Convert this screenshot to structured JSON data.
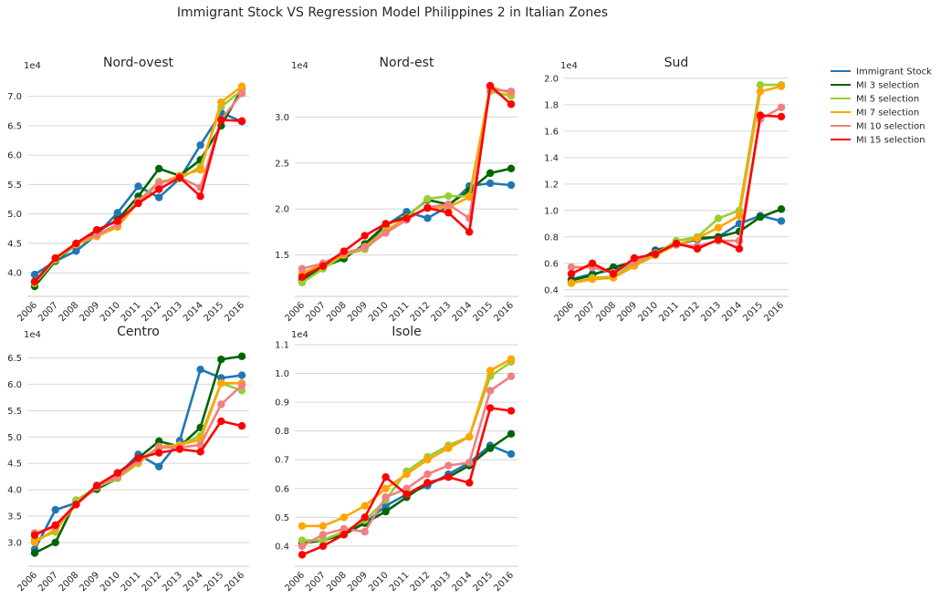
{
  "figure": {
    "title": "Immigrant Stock VS Regression Model Philippines 2 in Italian Zones"
  },
  "legend": {
    "placement": "right",
    "entries": [
      {
        "label": "Immigrant Stock",
        "color": "#1f77b4"
      },
      {
        "label": "MI 3 selection",
        "color": "#006400"
      },
      {
        "label": "MI 5 selection",
        "color": "#9acd32"
      },
      {
        "label": "MI 7 selection",
        "color": "#ffa500"
      },
      {
        "label": "MI 10 selection",
        "color": "#f08080"
      },
      {
        "label": "MI 15 selection",
        "color": "#ff0000"
      }
    ]
  },
  "chart_data": [
    {
      "type": "line",
      "title": "Nord-ovest",
      "exponent_label": "1e4",
      "x": [
        "2006",
        "2007",
        "2008",
        "2009",
        "2010",
        "2011",
        "2012",
        "2013",
        "2014",
        "2015",
        "2016"
      ],
      "ylim": [
        3.6,
        7.35
      ],
      "yticks": [
        "4.0",
        "4.5",
        "5.0",
        "5.5",
        "6.0",
        "6.5",
        "7.0"
      ],
      "grid": true,
      "series": [
        {
          "name": "Immigrant Stock",
          "color": "#1f77b4",
          "values": [
            3.97,
            4.2,
            4.37,
            4.65,
            5.02,
            5.47,
            5.28,
            5.6,
            6.17,
            6.72,
            6.57
          ]
        },
        {
          "name": "MI 3 selection",
          "color": "#006400",
          "values": [
            3.77,
            4.2,
            4.48,
            4.7,
            4.9,
            5.3,
            5.77,
            5.65,
            5.92,
            6.5,
            7.12
          ]
        },
        {
          "name": "MI 5 selection",
          "color": "#9acd32",
          "values": [
            3.82,
            4.22,
            4.48,
            4.62,
            4.82,
            5.22,
            5.55,
            5.6,
            5.8,
            6.82,
            7.1
          ]
        },
        {
          "name": "MI 7 selection",
          "color": "#ffa500",
          "values": [
            3.85,
            4.25,
            4.48,
            4.62,
            4.78,
            5.2,
            5.52,
            5.65,
            5.75,
            6.9,
            7.17
          ]
        },
        {
          "name": "MI 10 selection",
          "color": "#f08080",
          "values": [
            3.85,
            4.25,
            4.5,
            4.65,
            4.82,
            5.22,
            5.52,
            5.62,
            5.45,
            6.6,
            7.05
          ]
        },
        {
          "name": "MI 15 selection",
          "color": "#ff0000",
          "values": [
            3.85,
            4.25,
            4.5,
            4.73,
            4.88,
            5.18,
            5.42,
            5.62,
            5.3,
            6.6,
            6.58
          ]
        }
      ]
    },
    {
      "type": "line",
      "title": "Nord-est",
      "exponent_label": "1e4",
      "x": [
        "2006",
        "2007",
        "2008",
        "2009",
        "2010",
        "2011",
        "2012",
        "2013",
        "2014",
        "2015",
        "2016"
      ],
      "ylim": [
        1.05,
        3.45
      ],
      "yticks": [
        "1.5",
        "2.0",
        "2.5",
        "3.0"
      ],
      "grid": true,
      "series": [
        {
          "name": "Immigrant Stock",
          "color": "#1f77b4",
          "values": [
            1.28,
            1.38,
            1.48,
            1.6,
            1.82,
            1.97,
            1.9,
            2.03,
            2.25,
            2.28,
            2.26
          ]
        },
        {
          "name": "MI 3 selection",
          "color": "#006400",
          "values": [
            1.23,
            1.37,
            1.46,
            1.62,
            1.83,
            1.92,
            2.1,
            2.05,
            2.2,
            2.39,
            2.44
          ]
        },
        {
          "name": "MI 5 selection",
          "color": "#9acd32",
          "values": [
            1.2,
            1.35,
            1.5,
            1.56,
            1.76,
            1.91,
            2.11,
            2.14,
            2.14,
            3.28,
            3.23
          ]
        },
        {
          "name": "MI 7 selection",
          "color": "#ffa500",
          "values": [
            1.3,
            1.4,
            1.5,
            1.59,
            1.77,
            1.9,
            2.01,
            2.02,
            2.13,
            3.33,
            3.26
          ]
        },
        {
          "name": "MI 10 selection",
          "color": "#f08080",
          "values": [
            1.35,
            1.41,
            1.52,
            1.58,
            1.74,
            1.88,
            2.02,
            2.05,
            1.9,
            3.3,
            3.28
          ]
        },
        {
          "name": "MI 15 selection",
          "color": "#ff0000",
          "values": [
            1.26,
            1.38,
            1.54,
            1.71,
            1.84,
            1.9,
            2.01,
            1.96,
            1.75,
            3.34,
            3.14
          ]
        }
      ]
    },
    {
      "type": "line",
      "title": "Sud",
      "exponent_label": "1e4",
      "x": [
        "2006",
        "2007",
        "2008",
        "2009",
        "2010",
        "2011",
        "2012",
        "2013",
        "2014",
        "2015",
        "2016"
      ],
      "ylim": [
        0.35,
        2.02
      ],
      "yticks": [
        "0.4",
        "0.6",
        "0.8",
        "1.0",
        "1.2",
        "1.4",
        "1.6",
        "1.8",
        "2.0"
      ],
      "grid": true,
      "series": [
        {
          "name": "Immigrant Stock",
          "color": "#1f77b4",
          "values": [
            0.48,
            0.52,
            0.55,
            0.6,
            0.7,
            0.74,
            0.78,
            0.8,
            0.9,
            0.96,
            0.92
          ]
        },
        {
          "name": "MI 3 selection",
          "color": "#006400",
          "values": [
            0.47,
            0.51,
            0.57,
            0.61,
            0.69,
            0.74,
            0.79,
            0.8,
            0.84,
            0.95,
            1.01
          ]
        },
        {
          "name": "MI 5 selection",
          "color": "#9acd32",
          "values": [
            0.45,
            0.49,
            0.5,
            0.6,
            0.67,
            0.77,
            0.8,
            0.94,
            1.0,
            1.95,
            1.95
          ]
        },
        {
          "name": "MI 7 selection",
          "color": "#ffa500",
          "values": [
            0.45,
            0.48,
            0.49,
            0.58,
            0.66,
            0.74,
            0.79,
            0.87,
            0.96,
            1.9,
            1.94
          ]
        },
        {
          "name": "MI 10 selection",
          "color": "#f08080",
          "values": [
            0.57,
            0.57,
            0.53,
            0.61,
            0.68,
            0.74,
            0.73,
            0.77,
            0.77,
            1.69,
            1.78
          ]
        },
        {
          "name": "MI 15 selection",
          "color": "#ff0000",
          "values": [
            0.52,
            0.6,
            0.52,
            0.64,
            0.67,
            0.75,
            0.71,
            0.78,
            0.71,
            1.72,
            1.71
          ]
        }
      ]
    },
    {
      "type": "line",
      "title": "Centro",
      "exponent_label": "1e4",
      "x": [
        "2006",
        "2007",
        "2008",
        "2009",
        "2010",
        "2011",
        "2012",
        "2013",
        "2014",
        "2015",
        "2016"
      ],
      "ylim": [
        2.55,
        6.75
      ],
      "yticks": [
        "3.0",
        "3.5",
        "4.0",
        "4.5",
        "5.0",
        "5.5",
        "6.0",
        "6.5"
      ],
      "grid": true,
      "series": [
        {
          "name": "Immigrant Stock",
          "color": "#1f77b4",
          "values": [
            2.87,
            3.62,
            3.75,
            4.03,
            4.27,
            4.67,
            4.44,
            4.93,
            6.28,
            6.12,
            6.17
          ]
        },
        {
          "name": "MI 3 selection",
          "color": "#006400",
          "values": [
            2.8,
            3.0,
            3.8,
            4.01,
            4.22,
            4.6,
            4.92,
            4.82,
            5.18,
            6.47,
            6.53
          ]
        },
        {
          "name": "MI 5 selection",
          "color": "#9acd32",
          "values": [
            3.05,
            3.2,
            3.8,
            4.05,
            4.22,
            4.5,
            4.8,
            4.85,
            5.02,
            6.02,
            5.88
          ]
        },
        {
          "name": "MI 7 selection",
          "color": "#ffa500",
          "values": [
            3.0,
            3.25,
            3.72,
            4.05,
            4.25,
            4.52,
            4.82,
            4.85,
            4.95,
            6.02,
            6.02
          ]
        },
        {
          "name": "MI 10 selection",
          "color": "#f08080",
          "values": [
            3.18,
            3.3,
            3.72,
            4.06,
            4.25,
            4.55,
            4.8,
            4.8,
            4.85,
            5.62,
            5.98
          ]
        },
        {
          "name": "MI 15 selection",
          "color": "#ff0000",
          "values": [
            3.14,
            3.33,
            3.72,
            4.08,
            4.32,
            4.6,
            4.7,
            4.77,
            4.72,
            5.3,
            5.21
          ]
        }
      ]
    },
    {
      "type": "line",
      "title": "Isole",
      "exponent_label": "1e4",
      "x": [
        "2006",
        "2007",
        "2008",
        "2009",
        "2010",
        "2011",
        "2012",
        "2013",
        "2014",
        "2015",
        "2016"
      ],
      "ylim": [
        0.33,
        1.1
      ],
      "yticks": [
        "0.4",
        "0.5",
        "0.6",
        "0.7",
        "0.8",
        "0.9",
        "1.0",
        "1.1"
      ],
      "grid": true,
      "series": [
        {
          "name": "Immigrant Stock",
          "color": "#1f77b4",
          "values": [
            0.41,
            0.42,
            0.45,
            0.48,
            0.54,
            0.58,
            0.61,
            0.65,
            0.69,
            0.75,
            0.72
          ]
        },
        {
          "name": "MI 3 selection",
          "color": "#006400",
          "values": [
            0.41,
            0.42,
            0.44,
            0.48,
            0.52,
            0.57,
            0.62,
            0.64,
            0.68,
            0.74,
            0.79
          ]
        },
        {
          "name": "MI 5 selection",
          "color": "#9acd32",
          "values": [
            0.42,
            0.42,
            0.45,
            0.49,
            0.56,
            0.66,
            0.71,
            0.75,
            0.78,
            0.99,
            1.04
          ]
        },
        {
          "name": "MI 7 selection",
          "color": "#ffa500",
          "values": [
            0.47,
            0.47,
            0.5,
            0.54,
            0.6,
            0.65,
            0.7,
            0.74,
            0.78,
            1.01,
            1.05
          ]
        },
        {
          "name": "MI 10 selection",
          "color": "#f08080",
          "values": [
            0.4,
            0.44,
            0.46,
            0.45,
            0.57,
            0.6,
            0.65,
            0.68,
            0.69,
            0.94,
            0.99
          ]
        },
        {
          "name": "MI 15 selection",
          "color": "#ff0000",
          "values": [
            0.37,
            0.4,
            0.44,
            0.5,
            0.64,
            0.58,
            0.62,
            0.64,
            0.62,
            0.88,
            0.87
          ]
        }
      ]
    }
  ]
}
